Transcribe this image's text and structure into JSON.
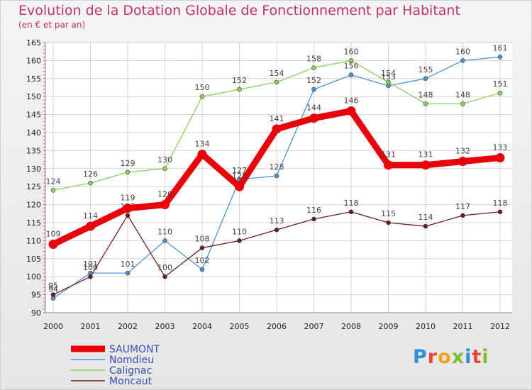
{
  "title": "Evolution de la Dotation Globale de Fonctionnement par Habitant",
  "subtitle": "(en € et par an)",
  "logo": {
    "text": "Proxiti",
    "colors": [
      "#2f8fd8",
      "#e8463c",
      "#f2a31c",
      "#7bbf2f",
      "#2f8fd8",
      "#e8463c",
      "#7bbf2f"
    ]
  },
  "chart_data": {
    "type": "line",
    "title": "Evolution de la Dotation Globale de Fonctionnement par Habitant",
    "subtitle": "(en € et par an)",
    "xlabel": "",
    "ylabel": "",
    "x": [
      "2000",
      "2001",
      "2002",
      "2003",
      "2004",
      "2005",
      "2006",
      "2007",
      "2008",
      "2009",
      "2010",
      "2011",
      "2012"
    ],
    "ylim": [
      90,
      165
    ],
    "yticks": [
      90,
      95,
      100,
      105,
      110,
      115,
      120,
      125,
      130,
      135,
      140,
      145,
      150,
      155,
      160,
      165
    ],
    "grid": true,
    "legend_position": "bottom-left",
    "series": [
      {
        "name": "SAUMONT",
        "color": "#e8000b",
        "values": [
          109,
          114,
          119,
          120,
          134,
          125,
          141,
          144,
          146,
          131,
          131,
          132,
          133
        ]
      },
      {
        "name": "Nomdieu",
        "color": "#4f93d0",
        "values": [
          94,
          101,
          101,
          110,
          102,
          127,
          128,
          152,
          156,
          153,
          155,
          160,
          161
        ]
      },
      {
        "name": "Calignac",
        "color": "#8bd05a",
        "values": [
          124,
          126,
          129,
          130,
          150,
          152,
          154,
          158,
          160,
          154,
          148,
          148,
          151
        ]
      },
      {
        "name": "Moncaut",
        "color": "#6b1d1d",
        "values": [
          95,
          100,
          117,
          100,
          108,
          110,
          113,
          116,
          118,
          115,
          114,
          117,
          118
        ]
      }
    ]
  }
}
